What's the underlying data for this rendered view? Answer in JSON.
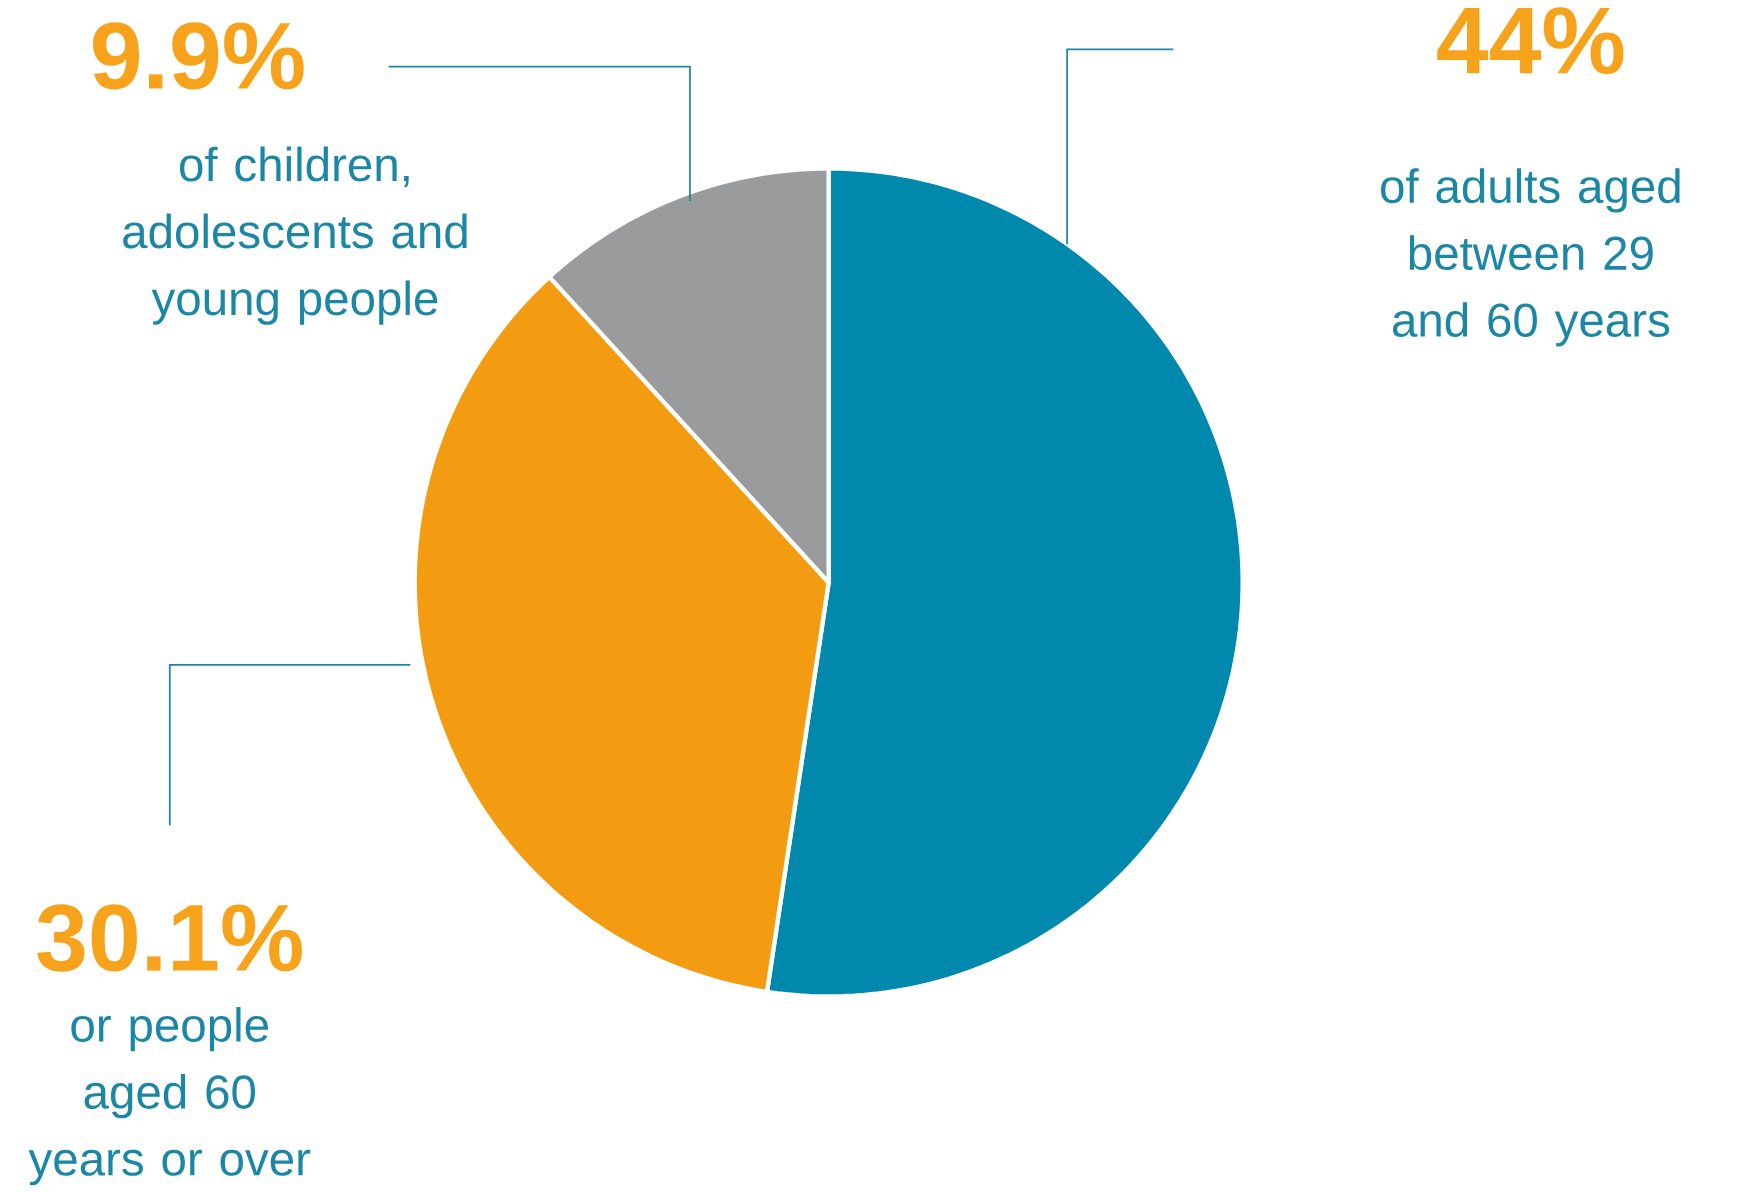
{
  "chart_data": {
    "type": "pie",
    "categories": [
      "of adults aged between 29 and 60 years",
      "or people aged 60 years or over",
      "of children, adolescents and young people"
    ],
    "values": [
      44,
      30.1,
      9.9
    ],
    "value_labels": [
      "44%",
      "30.1%",
      "9.9%"
    ],
    "colors": [
      "#0088ad",
      "#f39c12",
      "#9a9b9d"
    ]
  }
}
